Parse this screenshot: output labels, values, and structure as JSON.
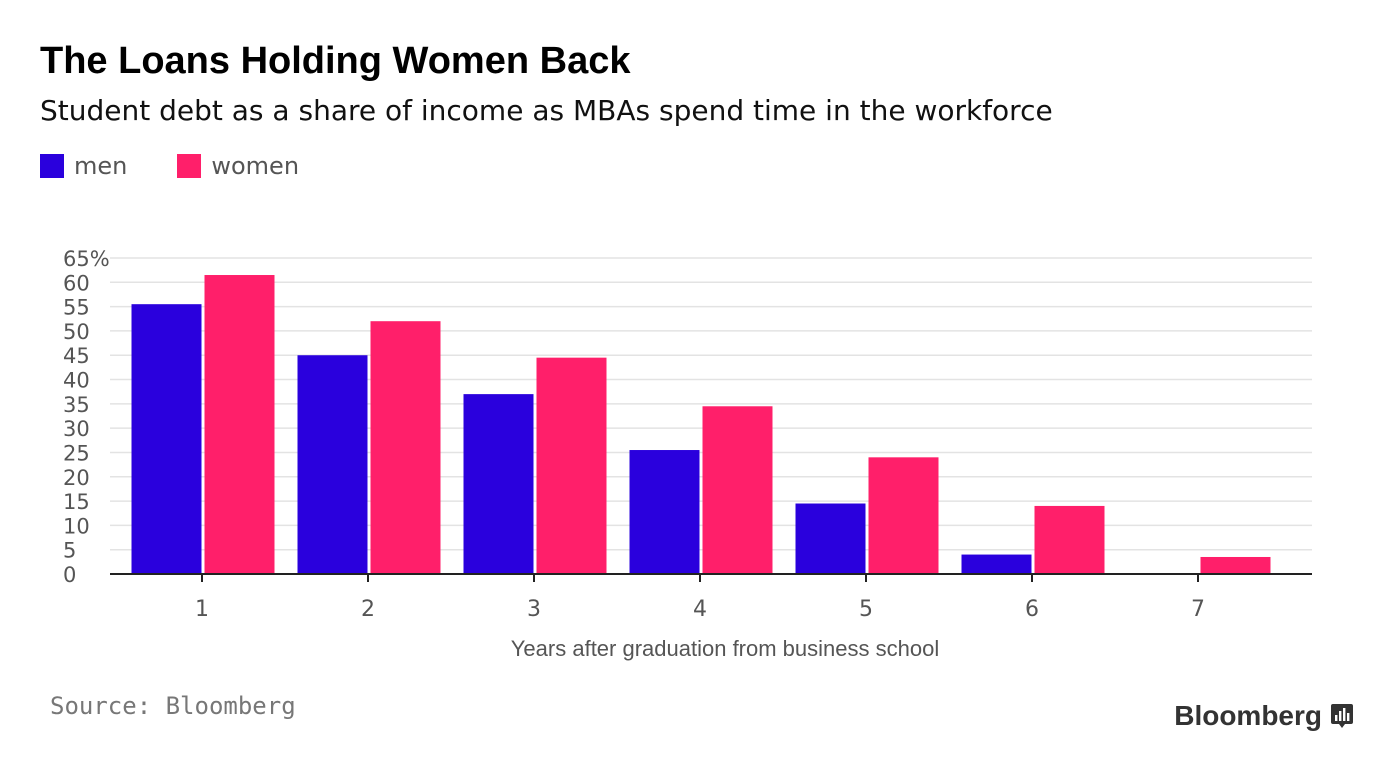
{
  "chart_data": {
    "type": "bar",
    "title": "The Loans Holding Women Back",
    "subtitle": "Student debt as a share of income as MBAs spend time in the workforce",
    "xlabel": "Years after graduation from business school",
    "ylabel": "",
    "categories": [
      "1",
      "2",
      "3",
      "4",
      "5",
      "6",
      "7"
    ],
    "series": [
      {
        "name": "men",
        "color": "#2a00dd",
        "values": [
          55.5,
          45,
          37,
          25.5,
          14.5,
          4,
          0
        ]
      },
      {
        "name": "women",
        "color": "#ff1f6a",
        "values": [
          61.5,
          52,
          44.5,
          34.5,
          24,
          14,
          3.5
        ]
      }
    ],
    "ylim": [
      0,
      65
    ],
    "yticks": [
      "0",
      "5",
      "10",
      "15",
      "20",
      "25",
      "30",
      "35",
      "40",
      "45",
      "50",
      "55",
      "60",
      "65%"
    ],
    "grid": true,
    "legend_position": "top-left"
  },
  "footer": {
    "source": "Source: Bloomberg",
    "brand": "Bloomberg"
  },
  "icons": {
    "brand_icon": "bar-chart-badge-icon"
  }
}
